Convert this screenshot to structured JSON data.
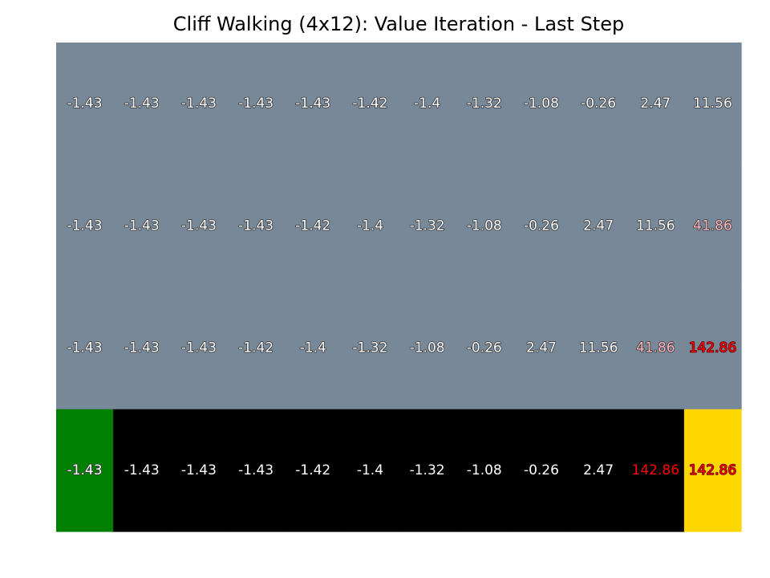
{
  "chart_data": {
    "type": "heatmap",
    "title": "Cliff Walking (4x12): Value Iteration - Last Step",
    "rows": 4,
    "cols": 12,
    "colors": {
      "state": "#778899",
      "cliff": "#000000",
      "start": "#008000",
      "goal": "#ffd700",
      "text_default": "#ffffff",
      "text_high": "#ff0000",
      "text_mid": "#ffb6c1"
    },
    "cell_types": [
      [
        "state",
        "state",
        "state",
        "state",
        "state",
        "state",
        "state",
        "state",
        "state",
        "state",
        "state",
        "state"
      ],
      [
        "state",
        "state",
        "state",
        "state",
        "state",
        "state",
        "state",
        "state",
        "state",
        "state",
        "state",
        "state"
      ],
      [
        "state",
        "state",
        "state",
        "state",
        "state",
        "state",
        "state",
        "state",
        "state",
        "state",
        "state",
        "state"
      ],
      [
        "start",
        "cliff",
        "cliff",
        "cliff",
        "cliff",
        "cliff",
        "cliff",
        "cliff",
        "cliff",
        "cliff",
        "cliff",
        "goal"
      ]
    ],
    "values": [
      [
        "-1.43",
        "-1.43",
        "-1.43",
        "-1.43",
        "-1.43",
        "-1.42",
        "-1.4",
        "-1.32",
        "-1.08",
        "-0.26",
        "2.47",
        "11.56"
      ],
      [
        "-1.43",
        "-1.43",
        "-1.43",
        "-1.43",
        "-1.42",
        "-1.4",
        "-1.32",
        "-1.08",
        "-0.26",
        "2.47",
        "11.56",
        "41.86"
      ],
      [
        "-1.43",
        "-1.43",
        "-1.43",
        "-1.42",
        "-1.4",
        "-1.32",
        "-1.08",
        "-0.26",
        "2.47",
        "11.56",
        "41.86",
        "142.86"
      ],
      [
        "-1.43",
        "-1.43",
        "-1.43",
        "-1.43",
        "-1.42",
        "-1.4",
        "-1.32",
        "-1.08",
        "-0.26",
        "2.47",
        "142.86",
        "142.86"
      ]
    ]
  }
}
